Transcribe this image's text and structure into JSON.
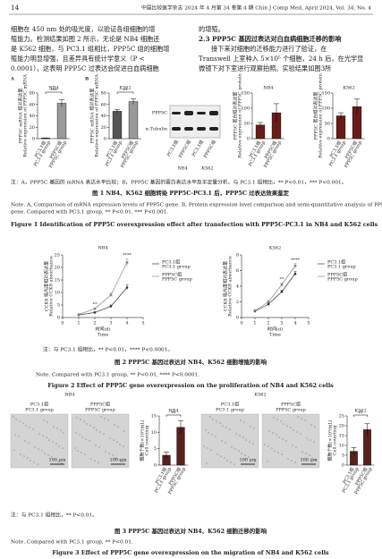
{
  "header": {
    "page": "14",
    "journal": "中国比较医学杂志 2024 年 4 月第 34 卷第 4 期   Chin J Comp Med, April 2024, Vol. 34, No. 4"
  },
  "left_column": [
    "细胞在 450 nm 处的吸光度，以验证各组细胞的增",
    "殖能力。检测结果如图 2 所示，无论是 NB4 细胞还",
    "是 K562 细胞，与 PC3.1 组相比，PPP5C 组的细胞增",
    "殖能力明显增强，且差异具有统计学意义（P <",
    "0.0001），这表明 PPP5C 过表达会促进白血病细胞"
  ],
  "right_column": {
    "before": "的增殖。",
    "heading": "2.3  PPP5C 基因过表达对白血病细胞迁移的影响",
    "after": [
      "接下来对细胞的迁移能力进行了验证，在",
      "Transwell 上室种入 5×10⁵ 个细胞，24 h 后，在光学显",
      "微镜下对下室进行观察拍照。实验结果如图3所"
    ]
  },
  "figure1": {
    "panel_labels": [
      "A",
      "B"
    ],
    "charts": [
      {
        "type": "bar",
        "title": "NB4",
        "categories": [
          [
            "PC3.1组",
            "PC3.1 group"
          ],
          [
            "PPP5C组",
            "PPP5C group"
          ]
        ],
        "values": [
          1,
          62
        ],
        "errors": [
          0.3,
          6
        ],
        "colors": [
          "#555555",
          "#9a9a9a"
        ],
        "ylim": [
          0,
          80
        ],
        "yticks": [
          0,
          20,
          40,
          60,
          80
        ],
        "ylabel": [
          "PPP5C mRNA 相对表达量",
          "Relative expression of PPP5C mRNA"
        ],
        "significance": "***"
      },
      {
        "type": "bar",
        "title": "K562",
        "categories": [
          [
            "PC3.1组",
            "PC3.1 group"
          ],
          [
            "PPP5C组",
            "PPP5C group"
          ]
        ],
        "values": [
          48,
          65
        ],
        "errors": [
          3,
          5
        ],
        "colors": [
          "#555555",
          "#9a9a9a"
        ],
        "ylim": [
          0,
          80
        ],
        "yticks": [
          0,
          20,
          40,
          60,
          80
        ],
        "ylabel": [
          "PPP5C mRNA 相对表达量",
          "Relative expression of PPP5C mRNA"
        ],
        "significance": "**"
      },
      {
        "type": "bar",
        "title": "NB4",
        "categories": [
          [
            "PC3.1组",
            "PC3.1 group"
          ],
          [
            "PPP5C组",
            "PPP5C group"
          ]
        ],
        "values": [
          45,
          85
        ],
        "errors": [
          8,
          30
        ],
        "colors": [
          "#6b1a1a",
          "#6b1a1a"
        ],
        "ylim": [
          0,
          150
        ],
        "yticks": [
          0,
          50,
          100,
          150
        ],
        "ylabel": [
          "PPP5C 蛋白相对表达量",
          "Relative expression of PPP5C protein"
        ]
      },
      {
        "type": "bar",
        "title": "K562",
        "categories": [
          [
            "PC3.1组",
            "PC3.1 group"
          ],
          [
            "PPP5C组",
            "PPP5C group"
          ]
        ],
        "values": [
          75,
          105
        ],
        "errors": [
          10,
          25
        ],
        "colors": [
          "#6b1a1a",
          "#6b1a1a"
        ],
        "ylim": [
          0,
          150
        ],
        "yticks": [
          0,
          50,
          100,
          150
        ],
        "ylabel": [
          "PPP5C 蛋白相对表达量",
          "Relative expression of PPP5C protein"
        ]
      }
    ],
    "blot": {
      "bands": [
        "PPP5C",
        "α-Tubulin"
      ],
      "lanes": [
        "PC3.1组",
        "PPP5C组",
        "PC3.1组",
        "PPP5C组"
      ],
      "groups": [
        "NB4",
        "K562"
      ]
    },
    "note_cn": "注：A，PPP5C 基因的 mRNA 表达水平比较；B，PPP5C 基因的蛋白表达水平及半定量分析。与 PC3.1 组相比，** P<0.01，*** P<0.001。",
    "caption_cn": "图 1   NB4、K562 细胞转染 PPP5C-PC3.1 后，PPP5C 过表达效果鉴定",
    "note_en": [
      "Note. A, Comparison of mRNA expression levels of PPP5C gene. B, Protein expression level comparison and semi-quantitative analysis of PPP5C",
      "gene. Compared with PC3.1 group, ** P<0.01, *** P<0.001."
    ],
    "caption_en": "Figure 1   Identification of PPP5C overexpression effect after transfection with PPP5C-PC3.1 in NB4 and K562 cells"
  },
  "figure2": {
    "charts": [
      {
        "type": "line",
        "title": "NB4",
        "x": [
          1,
          2,
          3,
          4
        ],
        "xlim": [
          0,
          5
        ],
        "xticks": [
          0,
          1,
          2,
          3,
          4,
          5
        ],
        "ylim": [
          0,
          25
        ],
        "yticks": [
          0,
          5,
          10,
          15,
          20,
          25
        ],
        "xlabel": [
          "时间(d)",
          "Time"
        ],
        "ylabel": [
          "CCK8 吸光度相对表达量",
          "Relative CCK8 absorbance"
        ],
        "series": [
          {
            "name": "PC3.1组",
            "name_en": "PC3.1 group",
            "color": "#333333",
            "values": [
              1.0,
              2.0,
              4.5,
              12
            ],
            "errors": [
              0.2,
              0.3,
              0.5,
              1
            ]
          },
          {
            "name": "PPP5C组",
            "name_en": "PPP5C group",
            "color": "#888888",
            "values": [
              1.2,
              3.5,
              9,
              22
            ],
            "errors": [
              0.2,
              0.4,
              0.8,
              1.5
            ]
          }
        ],
        "annotations": [
          {
            "x": 2,
            "label": "**"
          },
          {
            "x": 4,
            "label": "****"
          }
        ]
      },
      {
        "type": "line",
        "title": "K562",
        "x": [
          1,
          2,
          3,
          4
        ],
        "xlim": [
          0,
          5
        ],
        "xticks": [
          0,
          1,
          2,
          3,
          4,
          5
        ],
        "ylim": [
          0,
          8
        ],
        "yticks": [
          0,
          2,
          4,
          6,
          8
        ],
        "xlabel": [
          "时间(d)",
          "Time"
        ],
        "ylabel": [
          "CCK8 吸光度相对表达量",
          "Relative CCK8 absorbance"
        ],
        "series": [
          {
            "name": "PC3.1组",
            "name_en": "PC3.1 group",
            "color": "#333333",
            "values": [
              0.8,
              1.7,
              3.3,
              5.6
            ],
            "errors": [
              0.1,
              0.15,
              0.2,
              0.3
            ]
          },
          {
            "name": "PPP5C组",
            "name_en": "PPP5C group",
            "color": "#888888",
            "values": [
              0.9,
              2.0,
              4.2,
              6.6
            ],
            "errors": [
              0.1,
              0.15,
              0.25,
              0.3
            ]
          }
        ],
        "annotations": [
          {
            "x": 3,
            "label": "**"
          },
          {
            "x": 4,
            "label": "****"
          }
        ]
      }
    ],
    "note_cn": "注：与 PC3.1 组相比，** P<0.01，**** P<0.0001。",
    "caption_cn": "图 2   PPP5C 基因过表达对 NB4、K562 细胞增殖的影响",
    "note_en": "Note. Compared with PC3.1 group, ** P<0.01, **** P<0.0001.",
    "caption_en": "Figure 2   Effect of PPP5C gene overexpression on the proliferation of NB4 and K562 cells"
  },
  "figure3": {
    "groups": [
      {
        "title": "NB4",
        "images": [
          [
            "PC3.1组",
            "PC3.1 group"
          ],
          [
            "PPP5C组",
            "PPP5C group"
          ]
        ],
        "scale": "100 μm"
      },
      {
        "title": "K562",
        "images": [
          [
            "PC3.1组",
            "PC3.1 group"
          ],
          [
            "PPP5C组",
            "PPP5C group"
          ]
        ],
        "scale": "100 μm"
      }
    ],
    "charts": [
      {
        "type": "bar",
        "title": "NB4",
        "categories": [
          [
            "PC3.1组",
            "PC3.1 group"
          ],
          [
            "PPP5C组",
            "PPP5C group"
          ]
        ],
        "values": [
          3,
          11.5
        ],
        "errors": [
          1,
          2
        ],
        "colors": [
          "#5a1f1f",
          "#5a1f1f"
        ],
        "ylim": [
          0,
          15
        ],
        "yticks": [
          0,
          5,
          10,
          15
        ],
        "ylabel": [
          "细胞个数(×10³/mL)",
          "Cell counting"
        ],
        "significance": "**"
      },
      {
        "type": "bar",
        "title": "K562",
        "categories": [
          [
            "PC3.1组",
            "PC3.1 group"
          ],
          [
            "PPP5C组",
            "PPP5C group"
          ]
        ],
        "values": [
          7,
          18
        ],
        "errors": [
          2,
          3
        ],
        "colors": [
          "#5a1f1f",
          "#5a1f1f"
        ],
        "ylim": [
          0,
          25
        ],
        "yticks": [
          0,
          5,
          10,
          15,
          20,
          25
        ],
        "ylabel": [
          "细胞个数(×10³/mL)",
          "Cell counting"
        ],
        "significance": "**"
      }
    ],
    "note_cn": "注：与 PC3.1 组相比，** P<0.01。",
    "caption_cn": "图 3   PPP5C 基因过表达对 NB4、K562 细胞迁移的影响",
    "note_en": "Note. Compared with PC3.1 group, ** P<0.01.",
    "caption_en": "Figure 3   Effect of PPP5C gene overexpression on the migration of NB4 and K562 cells"
  }
}
